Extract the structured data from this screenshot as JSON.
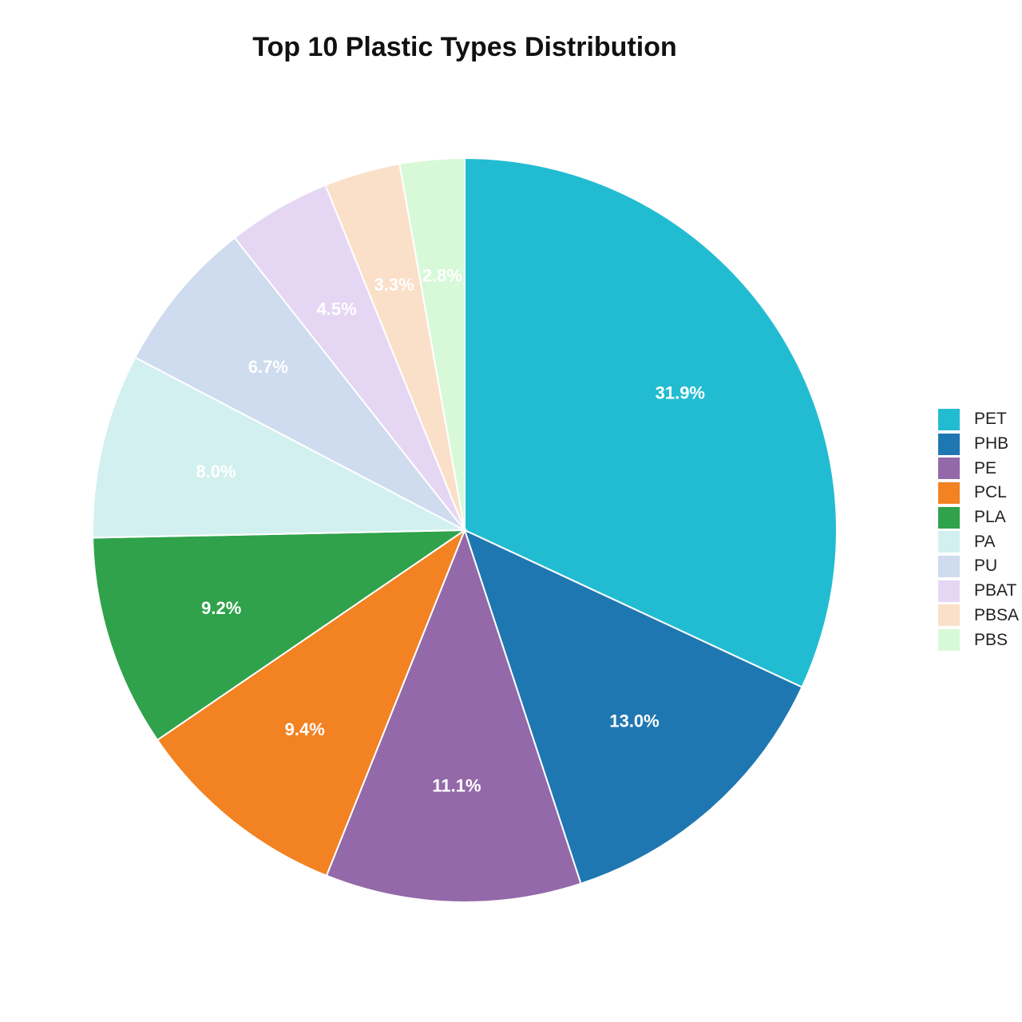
{
  "chart_data": {
    "type": "pie",
    "title": "Top 10 Plastic Types Distribution",
    "start_angle_deg": 0,
    "direction": "clockwise",
    "legend_position": "right",
    "slices": [
      {
        "label": "PET",
        "value": 31.9,
        "text": "31.9%",
        "color": "#22bcd2"
      },
      {
        "label": "PHB",
        "value": 13.0,
        "text": "13.0%",
        "color": "#1f77b1"
      },
      {
        "label": "PE",
        "value": 11.1,
        "text": "11.1%",
        "color": "#9369a9"
      },
      {
        "label": "PCL",
        "value": 9.4,
        "text": "9.4%",
        "color": "#f28222"
      },
      {
        "label": "PLA",
        "value": 9.2,
        "text": "9.2%",
        "color": "#2fa24b"
      },
      {
        "label": "PA",
        "value": 8.0,
        "text": "8.0%",
        "color": "#d2f0f0"
      },
      {
        "label": "PU",
        "value": 6.7,
        "text": "6.7%",
        "color": "#cfdbee"
      },
      {
        "label": "PBAT",
        "value": 4.5,
        "text": "4.5%",
        "color": "#e5d7f4"
      },
      {
        "label": "PBSA",
        "value": 3.3,
        "text": "3.3%",
        "color": "#fae0c9"
      },
      {
        "label": "PBS",
        "value": 2.8,
        "text": "2.8%",
        "color": "#d7f9d8"
      }
    ]
  }
}
